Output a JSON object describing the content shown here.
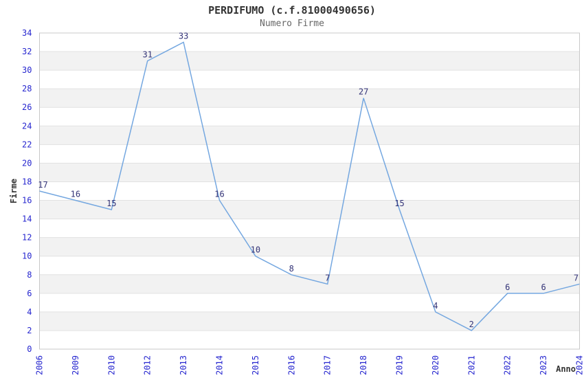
{
  "chart_data": {
    "type": "line",
    "title": "PERDIFUMO (c.f.81000490656)",
    "subtitle": "Numero Firme",
    "xlabel": "Anno",
    "ylabel": "Firme",
    "categories": [
      "2006",
      "2009",
      "2010",
      "2012",
      "2013",
      "2014",
      "2015",
      "2016",
      "2017",
      "2018",
      "2019",
      "2020",
      "2021",
      "2022",
      "2023",
      "2024"
    ],
    "series": [
      {
        "name": "Numero Firme",
        "values": [
          17,
          16,
          15,
          31,
          33,
          16,
          10,
          8,
          7,
          27,
          15,
          4,
          2,
          6,
          6,
          7
        ]
      }
    ],
    "point_labels": [
      "17",
      "16",
      "15",
      "31",
      "33",
      "16",
      "10",
      "8",
      "7",
      "27",
      "15",
      "4",
      "2",
      "6",
      "6",
      "7"
    ],
    "ylim": [
      0,
      34
    ],
    "ytick_step": 2,
    "yticks": [
      0,
      2,
      4,
      6,
      8,
      10,
      12,
      14,
      16,
      18,
      20,
      22,
      24,
      26,
      28,
      30,
      32,
      34
    ],
    "grid": true,
    "legend": false,
    "x_labels_rotated": true
  },
  "style": {
    "line_color": "#74a7e0",
    "tick_label_color": "#2626cf",
    "point_label_color": "#333377",
    "band_color": "#f2f2f2",
    "grid_color": "#e1e1e1",
    "plot_border_color": "#c8c8c8",
    "title_color": "#333333",
    "subtitle_color": "#666666",
    "axis_title_color": "#333333",
    "background_color": "#ffffff"
  }
}
